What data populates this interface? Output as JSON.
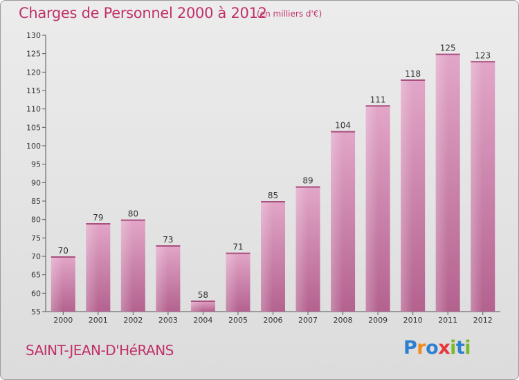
{
  "title": "Charges de Personnel 2000 à 2012",
  "subtitle": "(en milliers d'€)",
  "commune": "SAINT-JEAN-D'HéRANS",
  "logo": {
    "letters": [
      "P",
      "r",
      "o",
      "x",
      "i",
      "t",
      "i"
    ],
    "colors": [
      "#2f7fd0",
      "#f08a1c",
      "#2f7fd0",
      "#e8363c",
      "#7ab929",
      "#2f7fd0",
      "#7ab929"
    ]
  },
  "colors": {
    "bar": "#d58cb6",
    "bar_dark": "#b4628f",
    "accent": "#c0306a"
  },
  "chart_data": {
    "type": "bar",
    "categories": [
      "2000",
      "2001",
      "2002",
      "2003",
      "2004",
      "2005",
      "2006",
      "2007",
      "2008",
      "2009",
      "2010",
      "2011",
      "2012"
    ],
    "values": [
      70,
      79,
      80,
      73,
      58,
      71,
      85,
      89,
      104,
      111,
      118,
      125,
      123
    ],
    "ylim": [
      55,
      130
    ],
    "yticks": [
      55,
      60,
      65,
      70,
      75,
      80,
      85,
      90,
      95,
      100,
      105,
      110,
      115,
      120,
      125,
      130
    ],
    "title": "Charges de Personnel 2000 à 2012",
    "xlabel": "",
    "ylabel": "",
    "grid": false
  }
}
